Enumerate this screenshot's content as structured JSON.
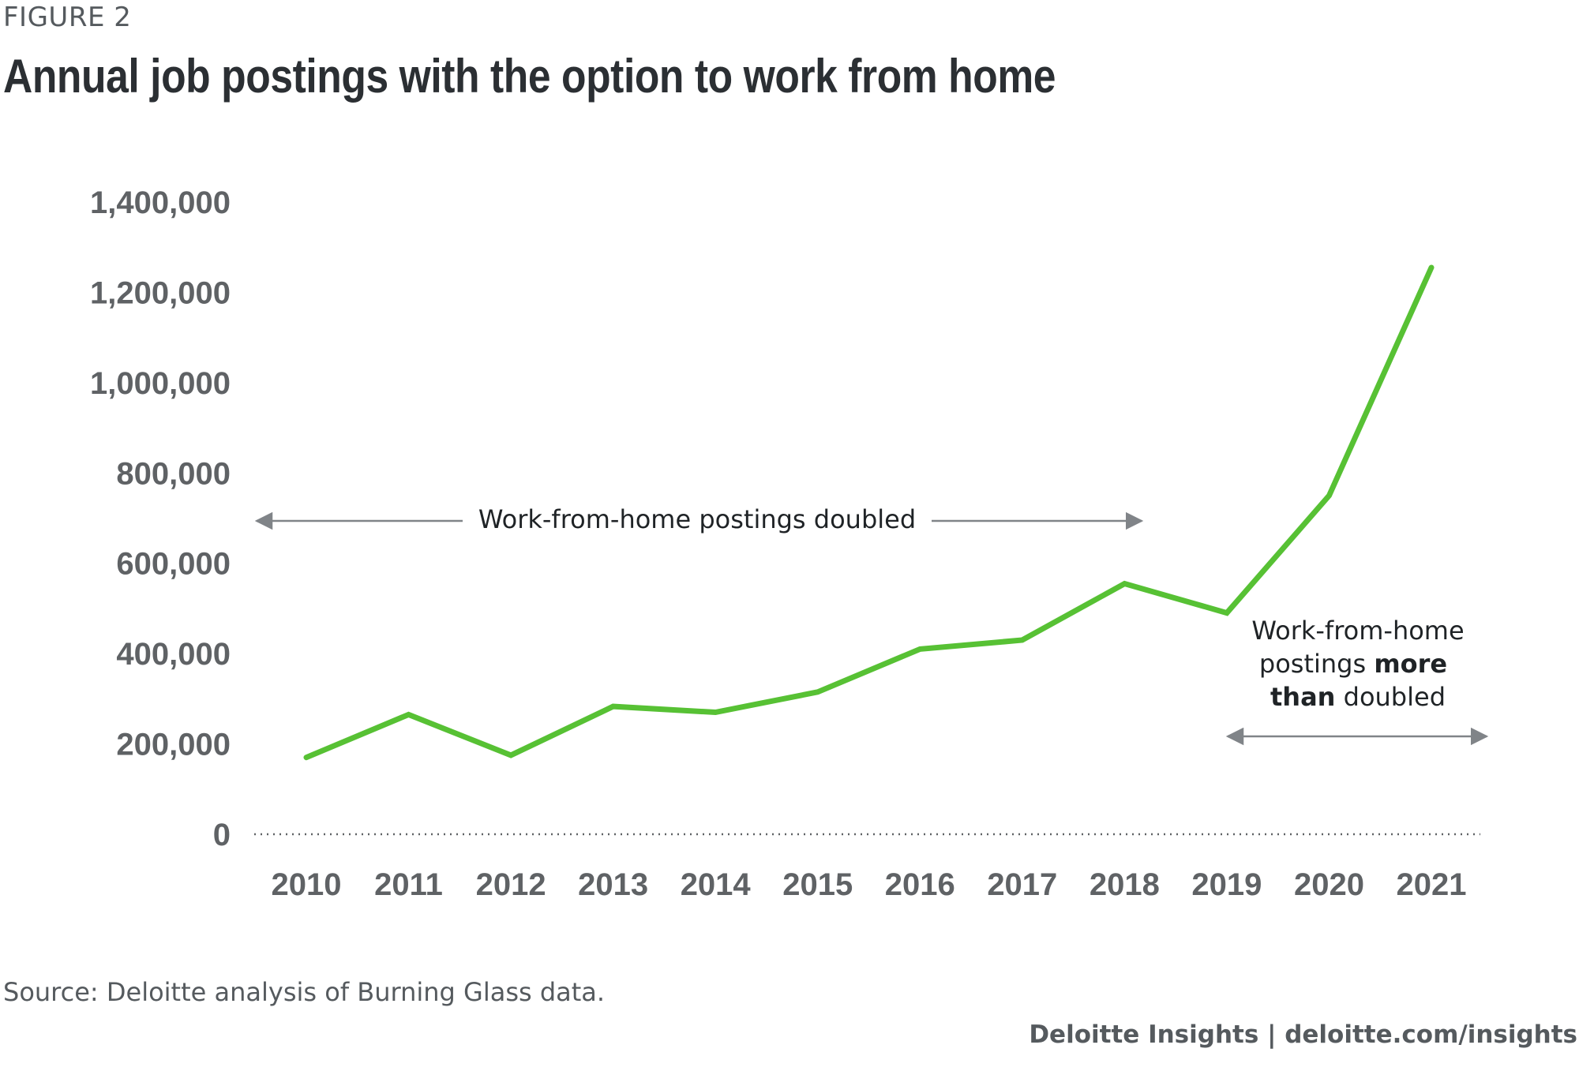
{
  "figure_label": "FIGURE 2",
  "title": "Annual job postings with the option to work from home",
  "source": "Source: Deloitte analysis of Burning Glass data.",
  "credit": "Deloitte Insights | deloitte.com/insights",
  "colors": {
    "line": "#57c134",
    "text": "#2b2f33",
    "axis": "#5f6265",
    "arrow": "#808488"
  },
  "annotations": {
    "first": "Work-from-home postings doubled",
    "second_line1": "Work-from-home",
    "second_line2_a": "postings ",
    "second_line2_b": "more",
    "second_line3_a": "than",
    "second_line3_b": " doubled"
  },
  "chart_data": {
    "type": "line",
    "title": "Annual job postings with the option to work from home",
    "xlabel": "",
    "ylabel": "",
    "categories": [
      "2010",
      "2011",
      "2012",
      "2013",
      "2014",
      "2015",
      "2016",
      "2017",
      "2018",
      "2019",
      "2020",
      "2021"
    ],
    "series": [
      {
        "values": [
          170000,
          265000,
          175000,
          283000,
          270000,
          315000,
          410000,
          430000,
          555000,
          490000,
          750000,
          1255000
        ]
      }
    ],
    "yticks": [
      0,
      200000,
      400000,
      600000,
      800000,
      1000000,
      1200000,
      1400000
    ],
    "ytick_labels": [
      "0",
      "200,000",
      "400,000",
      "600,000",
      "800,000",
      "1,000,000",
      "1,200,000",
      "1,400,000"
    ],
    "ylim": [
      0,
      1400000
    ],
    "grid": false,
    "baseline": "dotted"
  }
}
